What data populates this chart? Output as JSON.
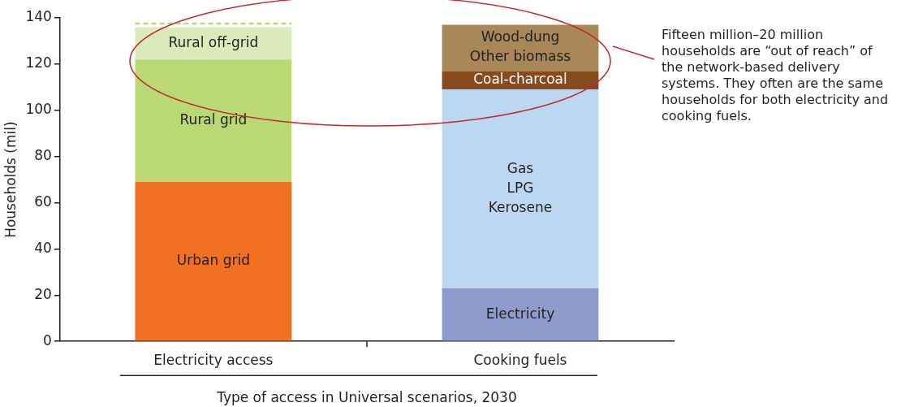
{
  "chart_data": {
    "type": "bar",
    "stacked": true,
    "xlabel": "Type of access in Universal scenarios, 2030",
    "ylabel": "Households (mil)",
    "categories": [
      "Electricity access",
      "Cooking fuels"
    ],
    "series": [
      {
        "name": "Urban grid",
        "color": "#f07122",
        "values": [
          69,
          null
        ]
      },
      {
        "name": "Rural grid",
        "color": "#bad975",
        "values": [
          53,
          null
        ]
      },
      {
        "name": "Rural off-grid",
        "color": "#dceabb",
        "values": [
          14,
          null
        ]
      },
      {
        "name": "Electricity",
        "color": "#8f9acd",
        "values": [
          null,
          23
        ]
      },
      {
        "name": "Gas\nLPG\nKerosene",
        "color": "#bcd7f1",
        "values": [
          null,
          86
        ]
      },
      {
        "name": "Coal-charcoal",
        "color": "#874a1e",
        "values": [
          null,
          8
        ]
      },
      {
        "name": "Wood-dung\nOther biomass",
        "color": "#a88758",
        "values": [
          null,
          20
        ]
      }
    ],
    "ylim": [
      0,
      140
    ],
    "yticks": [
      0,
      20,
      40,
      60,
      80,
      100,
      120,
      140
    ],
    "grid": false,
    "legend": false,
    "data_labels": false,
    "ref_lines": [
      {
        "axis": "y",
        "value": 137.5,
        "color": "#bad975",
        "line_style": "dashed"
      }
    ],
    "annotations": [
      "Fifteen million–20 million households are “out of reach” of the network-based delivery systems. They often are the same households for both electricity and cooking fuels."
    ]
  }
}
